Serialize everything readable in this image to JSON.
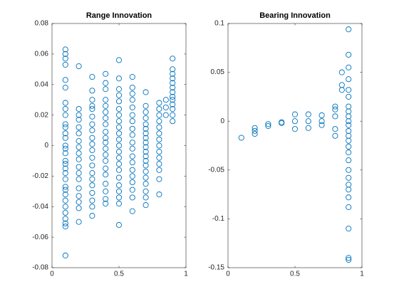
{
  "chart_data": [
    {
      "type": "scatter",
      "title": "Range Innovation",
      "color": "#0072bd",
      "xlim": [
        0,
        1
      ],
      "xticks": [
        0,
        0.5,
        1
      ],
      "ylim": [
        -0.08,
        0.08
      ],
      "yticks": [
        -0.08,
        -0.06,
        -0.04,
        -0.02,
        0,
        0.02,
        0.04,
        0.06,
        0.08
      ],
      "x": [
        0.1,
        0.1,
        0.1,
        0.1,
        0.1,
        0.1,
        0.1,
        0.1,
        0.1,
        0.1,
        0.1,
        0.1,
        0.1,
        0.1,
        0.1,
        0.1,
        0.1,
        0.1,
        0.1,
        0.1,
        0.1,
        0.1,
        0.1,
        0.1,
        0.1,
        0.1,
        0.1,
        0.1,
        0.1,
        0.1,
        0.1,
        0.2,
        0.2,
        0.2,
        0.2,
        0.2,
        0.2,
        0.2,
        0.2,
        0.2,
        0.2,
        0.2,
        0.2,
        0.2,
        0.2,
        0.2,
        0.2,
        0.2,
        0.2,
        0.3,
        0.3,
        0.3,
        0.3,
        0.3,
        0.3,
        0.3,
        0.3,
        0.3,
        0.3,
        0.3,
        0.3,
        0.3,
        0.3,
        0.3,
        0.3,
        0.3,
        0.3,
        0.3,
        0.3,
        0.4,
        0.4,
        0.4,
        0.4,
        0.4,
        0.4,
        0.4,
        0.4,
        0.4,
        0.4,
        0.4,
        0.4,
        0.4,
        0.4,
        0.4,
        0.4,
        0.4,
        0.4,
        0.4,
        0.4,
        0.5,
        0.5,
        0.5,
        0.5,
        0.5,
        0.5,
        0.5,
        0.5,
        0.5,
        0.5,
        0.5,
        0.5,
        0.5,
        0.5,
        0.5,
        0.5,
        0.5,
        0.5,
        0.5,
        0.5,
        0.5,
        0.5,
        0.6,
        0.6,
        0.6,
        0.6,
        0.6,
        0.6,
        0.6,
        0.6,
        0.6,
        0.6,
        0.6,
        0.6,
        0.6,
        0.6,
        0.6,
        0.6,
        0.6,
        0.6,
        0.6,
        0.7,
        0.7,
        0.7,
        0.7,
        0.7,
        0.7,
        0.7,
        0.7,
        0.7,
        0.7,
        0.7,
        0.7,
        0.7,
        0.7,
        0.7,
        0.7,
        0.7,
        0.7,
        0.7,
        0.7,
        0.8,
        0.8,
        0.8,
        0.8,
        0.8,
        0.8,
        0.8,
        0.8,
        0.8,
        0.8,
        0.8,
        0.8,
        0.8,
        0.8,
        0.85,
        0.85,
        0.85,
        0.9,
        0.9,
        0.9,
        0.9,
        0.9,
        0.9,
        0.9,
        0.9,
        0.9,
        0.9,
        0.9,
        0.9,
        0.9
      ],
      "values": [
        0.063,
        0.06,
        0.057,
        0.053,
        0.043,
        0.038,
        0.028,
        0.024,
        0.02,
        0.014,
        0.012,
        0.008,
        0.005,
        0,
        -0.002,
        -0.005,
        -0.01,
        -0.012,
        -0.015,
        -0.018,
        -0.022,
        -0.027,
        -0.029,
        -0.032,
        -0.036,
        -0.04,
        -0.044,
        -0.048,
        -0.051,
        -0.053,
        -0.072,
        0.052,
        0.024,
        0.02,
        0.017,
        0.012,
        0.008,
        0.003,
        -0.001,
        -0.005,
        -0.009,
        -0.014,
        -0.018,
        -0.022,
        -0.028,
        -0.033,
        -0.037,
        -0.041,
        -0.05,
        0.045,
        0.036,
        0.03,
        0.026,
        0.024,
        0.019,
        0.014,
        0.01,
        0.005,
        0.001,
        -0.003,
        -0.008,
        -0.013,
        -0.018,
        -0.022,
        -0.026,
        -0.031,
        -0.036,
        -0.04,
        -0.046,
        0.047,
        0.041,
        0.037,
        0.03,
        0.026,
        0.022,
        0.018,
        0.014,
        0.009,
        0.005,
        0.002,
        -0.002,
        -0.006,
        -0.01,
        -0.015,
        -0.019,
        -0.025,
        -0.03,
        -0.035,
        -0.038,
        0.056,
        0.044,
        0.037,
        0.033,
        0.029,
        0.024,
        0.02,
        0.016,
        0.012,
        0.008,
        0.004,
        0,
        -0.004,
        -0.008,
        -0.012,
        -0.016,
        -0.021,
        -0.026,
        -0.03,
        -0.034,
        -0.038,
        -0.052,
        0.045,
        0.038,
        0.034,
        0.03,
        0.025,
        0.02,
        0.016,
        0.011,
        0.007,
        0.002,
        -0.002,
        -0.007,
        -0.011,
        -0.016,
        -0.02,
        -0.024,
        -0.029,
        -0.034,
        -0.043,
        0.035,
        0.026,
        0.022,
        0.018,
        0.014,
        0.011,
        0.008,
        0.005,
        0.002,
        -0.001,
        -0.004,
        -0.007,
        -0.01,
        -0.013,
        -0.017,
        -0.021,
        -0.025,
        -0.03,
        -0.034,
        -0.039,
        0.028,
        0.024,
        0.02,
        0.016,
        0.012,
        0.008,
        0.004,
        0,
        -0.004,
        -0.008,
        -0.012,
        -0.016,
        -0.022,
        -0.032,
        0.03,
        0.025,
        0.02,
        0.057,
        0.05,
        0.047,
        0.044,
        0.041,
        0.038,
        0.035,
        0.032,
        0.03,
        0.027,
        0.024,
        0.02,
        0.016
      ]
    },
    {
      "type": "scatter",
      "title": "Bearing Innovation",
      "color": "#0072bd",
      "xlim": [
        0,
        1
      ],
      "xticks": [
        0,
        0.5,
        1
      ],
      "ylim": [
        -0.15,
        0.1
      ],
      "yticks": [
        -0.15,
        -0.1,
        -0.05,
        0,
        0.05,
        0.1
      ],
      "x": [
        0.1,
        0.2,
        0.2,
        0.2,
        0.3,
        0.3,
        0.4,
        0.4,
        0.5,
        0.5,
        0.5,
        0.6,
        0.6,
        0.6,
        0.7,
        0.7,
        0.7,
        0.8,
        0.8,
        0.8,
        0.8,
        0.8,
        0.85,
        0.85,
        0.85,
        0.9,
        0.9,
        0.9,
        0.9,
        0.9,
        0.9,
        0.9,
        0.9,
        0.9,
        0.9,
        0.9,
        0.9,
        0.9,
        0.9,
        0.9,
        0.9,
        0.9,
        0.9,
        0.9,
        0.9,
        0.9,
        0.9,
        0.9,
        0.9,
        0.9,
        0.9
      ],
      "values": [
        -0.017,
        -0.007,
        -0.01,
        -0.013,
        -0.003,
        -0.005,
        -0.001,
        -0.002,
        0.007,
        0,
        -0.008,
        0.007,
        0,
        -0.007,
        0.006,
        0,
        -0.004,
        0.015,
        0.012,
        0.005,
        -0.008,
        -0.015,
        0.05,
        0.037,
        0.032,
        0.094,
        0.068,
        0.055,
        0.043,
        0.032,
        0.025,
        0.015,
        0.01,
        0.005,
        0,
        -0.004,
        -0.01,
        -0.015,
        -0.02,
        -0.026,
        -0.032,
        -0.04,
        -0.05,
        -0.058,
        -0.065,
        -0.07,
        -0.078,
        -0.088,
        -0.11,
        -0.14,
        -0.142
      ]
    }
  ]
}
